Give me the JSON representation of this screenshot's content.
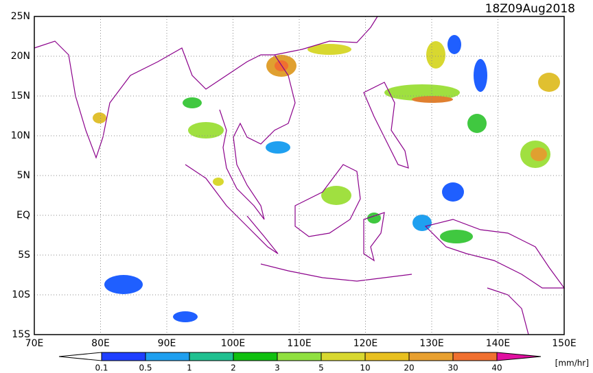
{
  "title": "18Z09Aug2018",
  "lat_labels": [
    "25N",
    "20N",
    "15N",
    "10N",
    "5N",
    "EQ",
    "5S",
    "10S",
    "15S"
  ],
  "lon_labels": [
    "70E",
    "80E",
    "90E",
    "100E",
    "110E",
    "120E",
    "130E",
    "140E",
    "150E"
  ],
  "colorbar": {
    "labels": [
      "0.1",
      "0.5",
      "1",
      "2",
      "3",
      "5",
      "10",
      "20",
      "30",
      "40"
    ],
    "unit": "[mm/hr]"
  }
}
